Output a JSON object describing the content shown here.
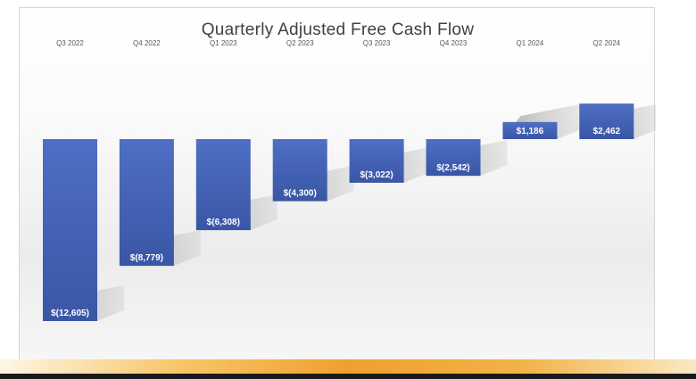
{
  "chart_data": {
    "type": "bar",
    "title": "Quarterly Adjusted Free Cash Flow",
    "xlabel": "",
    "ylabel": "",
    "categories": [
      "Q3 2022",
      "Q4 2022",
      "Q1 2023",
      "Q2 2023",
      "Q3 2023",
      "Q4 2023",
      "Q1 2024",
      "Q2 2024"
    ],
    "values": [
      -12605,
      -8779,
      -6308,
      -4300,
      -3022,
      -2542,
      1186,
      2462
    ],
    "labels": [
      "$(12,605)",
      "$(8,779)",
      "$(6,308)",
      "$(4,300)",
      "$(3,022)",
      "$(2,542)",
      "$1,186",
      "$2,462"
    ],
    "ylim": [
      -12605,
      2462
    ],
    "grid": false,
    "legend": "none",
    "x_axis_position": "top",
    "colors": {
      "bar": "#4e6fc4",
      "bar_dark": "#3a56a5",
      "label": "#ffffff"
    }
  }
}
